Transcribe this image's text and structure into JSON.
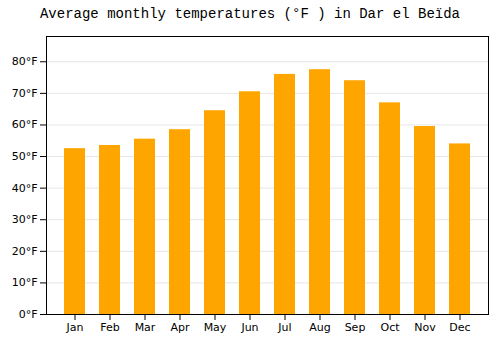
{
  "chart_data": {
    "type": "bar",
    "title": "Average monthly temperatures (°F ) in Dar el Beïda",
    "categories": [
      "Jan",
      "Feb",
      "Mar",
      "Apr",
      "May",
      "Jun",
      "Jul",
      "Aug",
      "Sep",
      "Oct",
      "Nov",
      "Dec"
    ],
    "values": [
      52.5,
      53.5,
      55.5,
      58.5,
      64.5,
      70.5,
      76.0,
      77.5,
      74.0,
      67.0,
      59.5,
      54.0
    ],
    "color": "#FFA500",
    "ylim": [
      0,
      88
    ],
    "yticks": [
      {
        "value": 0,
        "label": "0°F"
      },
      {
        "value": 10,
        "label": "10°F"
      },
      {
        "value": 20,
        "label": "20°F"
      },
      {
        "value": 30,
        "label": "30°F"
      },
      {
        "value": 40,
        "label": "40°F"
      },
      {
        "value": 50,
        "label": "50°F"
      },
      {
        "value": 60,
        "label": "60°F"
      },
      {
        "value": 70,
        "label": "70°F"
      },
      {
        "value": 80,
        "label": "80°F"
      }
    ],
    "grid": true
  }
}
